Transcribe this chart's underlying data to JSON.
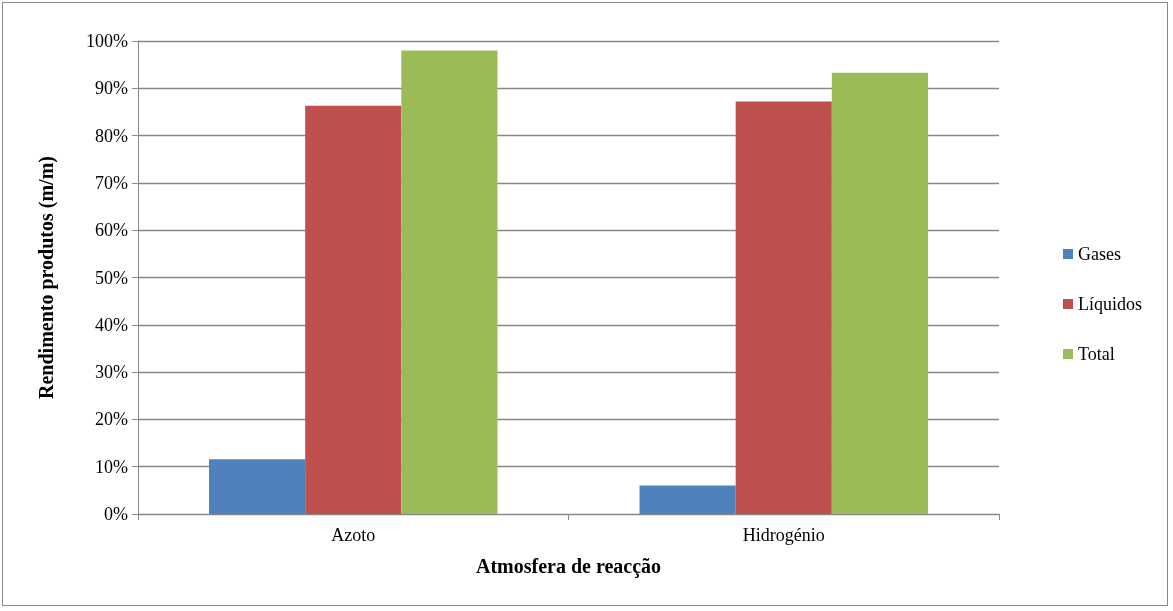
{
  "chart_data": {
    "type": "bar",
    "xlabel": "Atmosfera de reacção",
    "ylabel": "Rendimento produtos (m/m)",
    "categories": [
      "Azoto",
      "Hidrogénio"
    ],
    "series": [
      {
        "name": "Gases",
        "color": "#4f81bd",
        "values": [
          11.6,
          6.0
        ]
      },
      {
        "name": "Líquidos",
        "color": "#c0504d",
        "values": [
          86.3,
          87.2
        ]
      },
      {
        "name": "Total",
        "color": "#9bbb59",
        "values": [
          98.0,
          93.3
        ]
      }
    ],
    "ylim": [
      0,
      100
    ],
    "yticks": [
      {
        "value": 0,
        "label": "0%"
      },
      {
        "value": 10,
        "label": "10%"
      },
      {
        "value": 20,
        "label": "20%"
      },
      {
        "value": 30,
        "label": "30%"
      },
      {
        "value": 40,
        "label": "40%"
      },
      {
        "value": 50,
        "label": "50%"
      },
      {
        "value": 60,
        "label": "60%"
      },
      {
        "value": 70,
        "label": "70%"
      },
      {
        "value": 80,
        "label": "80%"
      },
      {
        "value": 90,
        "label": "90%"
      },
      {
        "value": 100,
        "label": "100%"
      }
    ],
    "grid": "y",
    "legend": "right"
  }
}
